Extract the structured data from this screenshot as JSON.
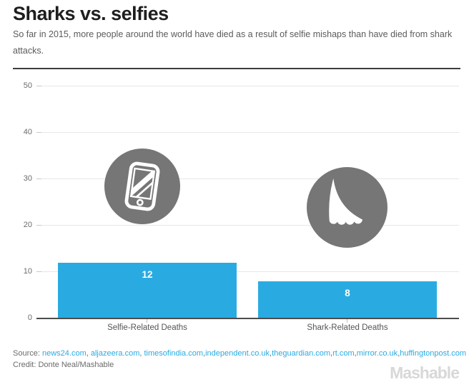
{
  "header": {
    "title": "Sharks vs. selfies",
    "subtitle": "So far in 2015, more people around the world have died as a result of selfie mishaps than have died from shark attacks."
  },
  "chart_data": {
    "type": "bar",
    "categories": [
      "Selfie-Related Deaths",
      "Shark-Related Deaths"
    ],
    "values": [
      12,
      8
    ],
    "bar_value_labels": [
      "12",
      "8"
    ],
    "icons": [
      "smartphone-icon",
      "shark-fin-icon"
    ],
    "y_ticks": [
      0,
      10,
      20,
      30,
      40,
      50
    ],
    "ylim": [
      0,
      50
    ],
    "grid": true,
    "legend": "none",
    "xlabel": "",
    "ylabel": "",
    "bar_color": "#29abe2",
    "icon_circle_color": "#767676",
    "title": "Sharks vs. selfies"
  },
  "footer": {
    "source_label": "Source:",
    "source_links": [
      "news24.com",
      "aljazeera.com",
      "timesofindia.com",
      "independent.co.uk",
      "theguardian.com",
      "rt.com",
      "mirror.co.uk",
      "huffingtonpost.com"
    ],
    "source_separators": [
      ", ",
      ", ",
      ",",
      ",",
      ",",
      ",",
      ",",
      ""
    ],
    "credit": "Credit: Donte Neal/Mashable",
    "brand_logo": "Mashable",
    "link_color": "#29abe2"
  }
}
